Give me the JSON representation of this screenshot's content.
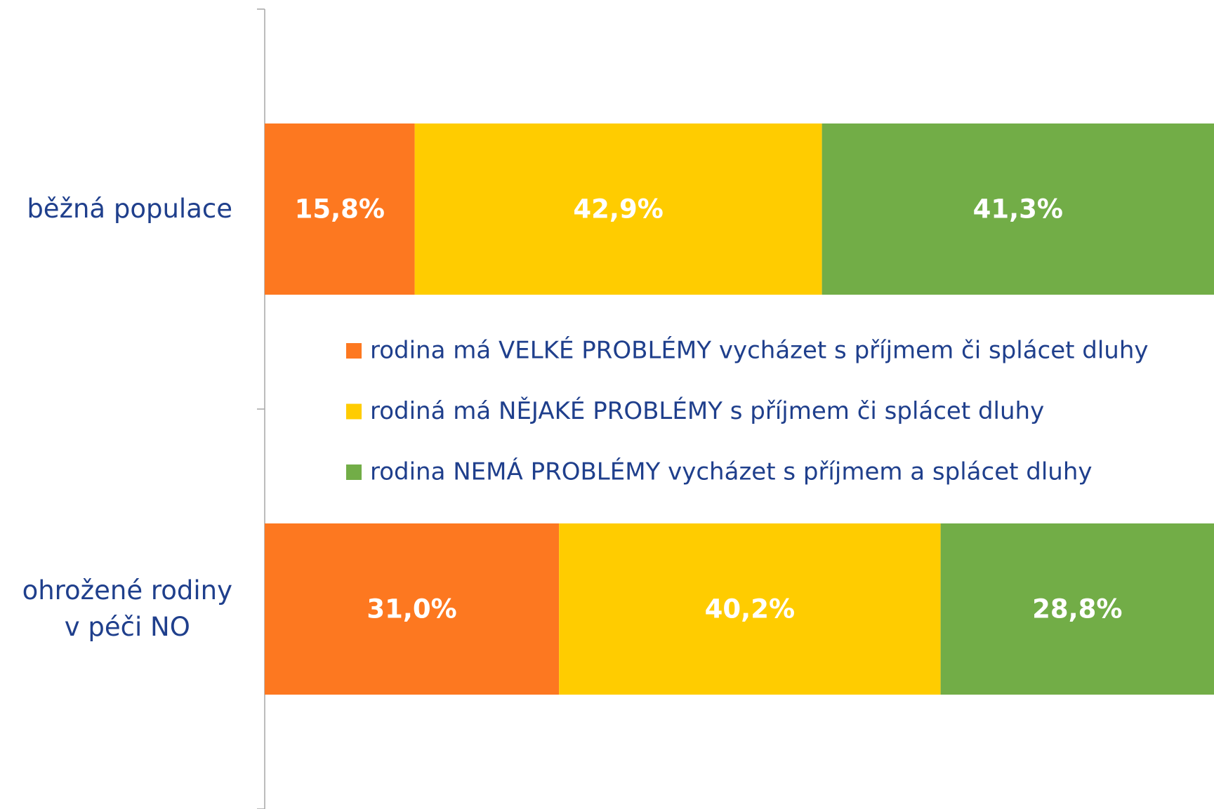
{
  "chart_data": {
    "type": "stacked-bar-horizontal",
    "categories": [
      "běžná populace",
      "ohrožené rodiny\nv péči NO"
    ],
    "series": [
      {
        "name": "rodina má VELKÉ PROBLÉMY vycházet s příjmem či splácet dluhy",
        "color": "#fd7820",
        "values": [
          15.8,
          31.0
        ],
        "value_labels": [
          "15,8%",
          "31,0%"
        ]
      },
      {
        "name": "rodiná má NĚJAKÉ PROBLÉMY s příjmem či splácet dluhy",
        "color": "#ffcc00",
        "values": [
          42.9,
          40.2
        ],
        "value_labels": [
          "42,9%",
          "40,2%"
        ]
      },
      {
        "name": "rodina NEMÁ PROBLÉMY vycházet s příjmem a splácet dluhy",
        "color": "#72ad47",
        "values": [
          41.3,
          28.8
        ],
        "value_labels": [
          "41,3%",
          "28,8%"
        ]
      }
    ],
    "xlim": [
      0,
      100
    ]
  }
}
